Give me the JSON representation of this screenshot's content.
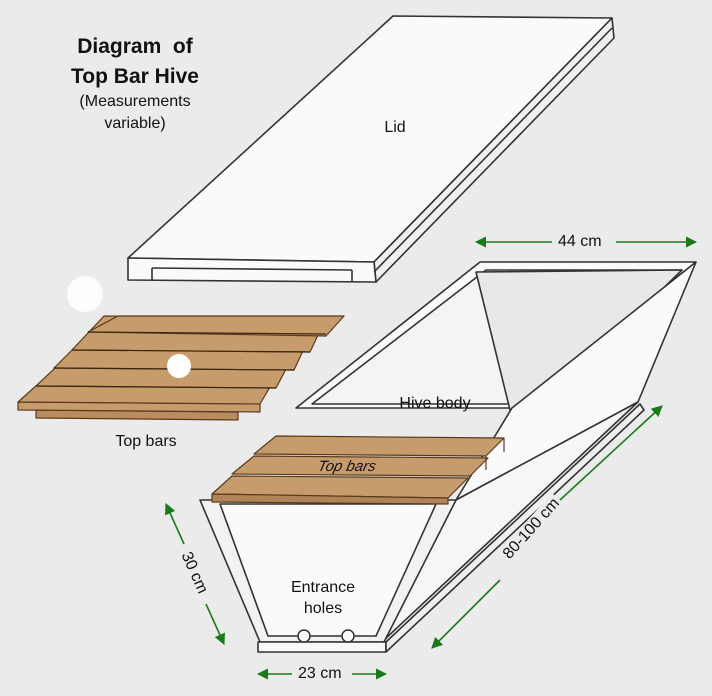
{
  "title_line1": "Diagram  of",
  "title_line2": "Top Bar Hive",
  "subtitle_line1": "(Measurements",
  "subtitle_line2": "variable)",
  "labels": {
    "lid": "Lid",
    "top_bars": "Top bars",
    "top_bars_on_hive": "Top bars",
    "hive_body": "Hive body",
    "entrance_line1": "Entrance",
    "entrance_line2": "holes"
  },
  "dimensions": {
    "top_width": "44 cm",
    "length": "80-100 cm",
    "height": "30 cm",
    "bottom_width": "23 cm"
  },
  "colors": {
    "wood": "#c69c6d",
    "wood_stroke": "#5a3a1a",
    "arrow": "#1a7a1a",
    "outline": "#333333"
  }
}
